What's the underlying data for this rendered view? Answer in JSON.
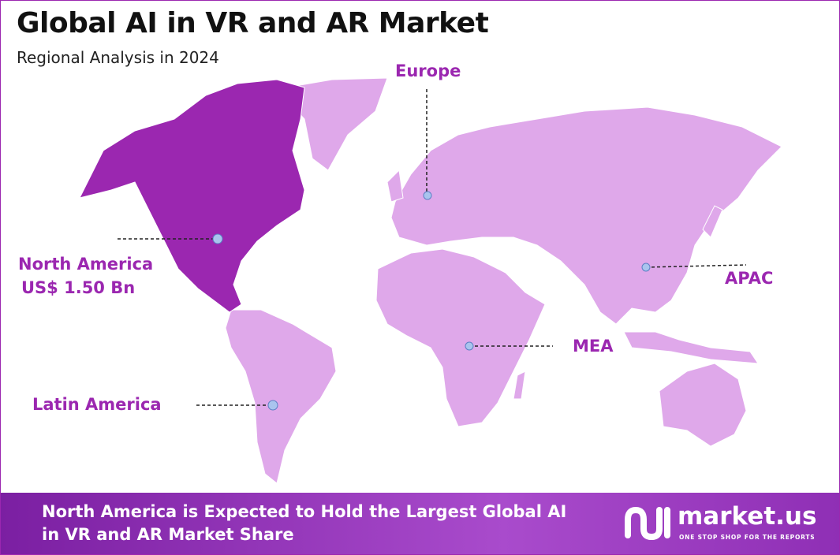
{
  "header": {
    "title": "Global AI in VR and AR Market",
    "subtitle": "Regional Analysis in 2024"
  },
  "regions": [
    {
      "label": "North America",
      "value": "US$ 1.50 Bn"
    },
    {
      "label": "Europe"
    },
    {
      "label": "APAC"
    },
    {
      "label": "MEA"
    },
    {
      "label": "Latin America"
    }
  ],
  "footer": {
    "text": "North America is Expected to Hold the Largest Global AI in VR and AR Market Share",
    "brand": "market.us",
    "tagline": "ONE STOP SHOP FOR THE REPORTS"
  }
}
